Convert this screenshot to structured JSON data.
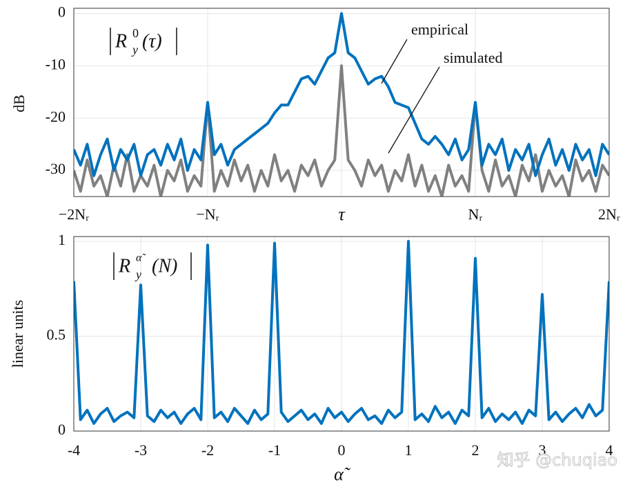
{
  "chart_data": [
    {
      "type": "line",
      "ylabel": "dB",
      "label": {
        "base": "R",
        "sub": "y",
        "sup": "0",
        "arg": "(τ)"
      },
      "xlim": [
        -2,
        2
      ],
      "ylim": [
        -35,
        1
      ],
      "xticks": [
        {
          "value": -2,
          "label": "−2Nᵣ"
        },
        {
          "value": -1,
          "label": "−Nᵣ"
        },
        {
          "value": 0,
          "label": "τ"
        },
        {
          "value": 1,
          "label": "Nᵣ"
        },
        {
          "value": 2,
          "label": "2Nᵣ"
        }
      ],
      "yticks": [
        0,
        -10,
        -20,
        -30
      ],
      "grid": true,
      "x": [
        -2.0,
        -1.95,
        -1.9,
        -1.85,
        -1.8,
        -1.75,
        -1.7,
        -1.65,
        -1.6,
        -1.55,
        -1.5,
        -1.45,
        -1.4,
        -1.35,
        -1.3,
        -1.25,
        -1.2,
        -1.15,
        -1.1,
        -1.05,
        -1.0,
        -0.95,
        -0.9,
        -0.85,
        -0.8,
        -0.75,
        -0.7,
        -0.65,
        -0.6,
        -0.55,
        -0.5,
        -0.45,
        -0.4,
        -0.35,
        -0.3,
        -0.25,
        -0.2,
        -0.15,
        -0.1,
        -0.05,
        0.0,
        0.05,
        0.1,
        0.15,
        0.2,
        0.25,
        0.3,
        0.35,
        0.4,
        0.45,
        0.5,
        0.55,
        0.6,
        0.65,
        0.7,
        0.75,
        0.8,
        0.85,
        0.9,
        0.95,
        1.0,
        1.05,
        1.1,
        1.15,
        1.2,
        1.25,
        1.3,
        1.35,
        1.4,
        1.45,
        1.5,
        1.55,
        1.6,
        1.65,
        1.7,
        1.75,
        1.8,
        1.85,
        1.9,
        1.95,
        2.0
      ],
      "series": [
        {
          "name": "simulated",
          "color": "#808080",
          "values": [
            -30,
            -34,
            -28,
            -33,
            -31,
            -35,
            -29,
            -33,
            -27,
            -34,
            -31,
            -33,
            -29,
            -35,
            -30,
            -32,
            -28,
            -34,
            -31,
            -33,
            -17,
            -34,
            -30,
            -33,
            -28,
            -32,
            -29,
            -34,
            -30,
            -33,
            -27,
            -32,
            -30,
            -34,
            -29,
            -31,
            -28,
            -33,
            -30,
            -28,
            -10,
            -28,
            -30,
            -33,
            -28,
            -31,
            -29,
            -34,
            -30,
            -32,
            -27,
            -33,
            -29,
            -34,
            -31,
            -35,
            -29,
            -33,
            -31,
            -34,
            -17,
            -30,
            -34,
            -28,
            -33,
            -31,
            -35,
            -29,
            -32,
            -27,
            -34,
            -30,
            -33,
            -31,
            -35,
            -28,
            -32,
            -30,
            -34,
            -29,
            -31
          ]
        },
        {
          "name": "empirical",
          "color": "#0072bd",
          "values": [
            -26,
            -29,
            -25,
            -31,
            -27,
            -24,
            -30,
            -26,
            -28,
            -25,
            -31,
            -27,
            -26,
            -29,
            -25,
            -28,
            -24,
            -30,
            -26,
            -28,
            -17,
            -27,
            -25,
            -29,
            -26,
            -25,
            -24,
            -23,
            -22,
            -21,
            -19,
            -17.5,
            -17.5,
            -15,
            -12.5,
            -12,
            -13.5,
            -11,
            -8.5,
            -7.5,
            0,
            -7.5,
            -8.5,
            -11,
            -13.5,
            -12.5,
            -12,
            -14,
            -17,
            -17.5,
            -18,
            -21,
            -24,
            -25,
            -23.5,
            -25,
            -27,
            -24,
            -28,
            -26,
            -17,
            -29,
            -25,
            -27,
            -24,
            -30,
            -26,
            -28,
            -25,
            -31,
            -27,
            -24,
            -29,
            -26,
            -30,
            -25,
            -28,
            -26,
            -31,
            -25,
            -27
          ]
        }
      ]
    },
    {
      "type": "line",
      "ylabel": "linear units",
      "xlabel": "α̃",
      "label": {
        "base": "R",
        "sub": "y",
        "sup": "α̃",
        "arg": "(N)"
      },
      "xlim": [
        -4,
        4
      ],
      "ylim": [
        0,
        1.025
      ],
      "xticks": [
        -4,
        -3,
        -2,
        -1,
        0,
        1,
        2,
        3,
        4
      ],
      "yticks": [
        0,
        0.5,
        1
      ],
      "grid": true,
      "x": [
        -4.0,
        -3.9,
        -3.8,
        -3.7,
        -3.6,
        -3.5,
        -3.4,
        -3.3,
        -3.2,
        -3.1,
        -3.0,
        -2.9,
        -2.8,
        -2.7,
        -2.6,
        -2.5,
        -2.4,
        -2.3,
        -2.2,
        -2.1,
        -2.0,
        -1.9,
        -1.8,
        -1.7,
        -1.6,
        -1.5,
        -1.4,
        -1.3,
        -1.2,
        -1.1,
        -1.0,
        -0.9,
        -0.8,
        -0.7,
        -0.6,
        -0.5,
        -0.4,
        -0.3,
        -0.2,
        -0.1,
        0.0,
        0.1,
        0.2,
        0.3,
        0.4,
        0.5,
        0.6,
        0.7,
        0.8,
        0.9,
        1.0,
        1.1,
        1.2,
        1.3,
        1.4,
        1.5,
        1.6,
        1.7,
        1.8,
        1.9,
        2.0,
        2.1,
        2.2,
        2.3,
        2.4,
        2.5,
        2.6,
        2.7,
        2.8,
        2.9,
        3.0,
        3.1,
        3.2,
        3.3,
        3.4,
        3.5,
        3.6,
        3.7,
        3.8,
        3.9,
        4.0
      ],
      "series": [
        {
          "color": "#0072bd",
          "values": [
            0.79,
            0.06,
            0.11,
            0.04,
            0.09,
            0.12,
            0.05,
            0.08,
            0.1,
            0.07,
            0.77,
            0.08,
            0.05,
            0.11,
            0.07,
            0.1,
            0.04,
            0.09,
            0.12,
            0.06,
            0.98,
            0.07,
            0.1,
            0.05,
            0.12,
            0.08,
            0.04,
            0.11,
            0.06,
            0.09,
            0.99,
            0.1,
            0.05,
            0.08,
            0.11,
            0.06,
            0.09,
            0.04,
            0.12,
            0.07,
            0.1,
            0.05,
            0.09,
            0.12,
            0.06,
            0.08,
            0.04,
            0.11,
            0.07,
            0.1,
            1.0,
            0.06,
            0.09,
            0.05,
            0.13,
            0.07,
            0.1,
            0.04,
            0.11,
            0.08,
            0.91,
            0.07,
            0.12,
            0.05,
            0.09,
            0.06,
            0.1,
            0.04,
            0.11,
            0.08,
            0.72,
            0.06,
            0.1,
            0.05,
            0.09,
            0.12,
            0.07,
            0.14,
            0.08,
            0.11,
            0.79
          ]
        }
      ]
    }
  ],
  "watermark": "知乎 @chuqiao"
}
